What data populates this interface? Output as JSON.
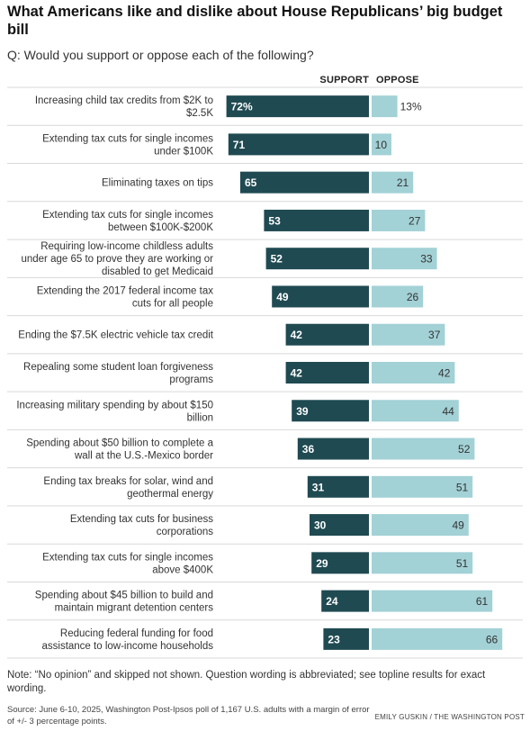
{
  "title": "What Americans like and dislike about House Republicans’ big budget bill",
  "subtitle": "Q: Would you support or oppose each of the following?",
  "note": "Note: “No opinion” and skipped not shown. Question wording is abbreviated; see topline results for exact wording.",
  "source": "Source: June 6-10, 2025, Washington Post-Ipsos poll of 1,167 U.S. adults with a margin of error of +/- 3 percentage points.",
  "credit": "EMILY GUSKIN / THE WASHINGTON POST",
  "colors": {
    "support": "#1f4a52",
    "oppose": "#a2d1d6",
    "divider": "#d9d9d9"
  },
  "chart_data": {
    "type": "bar",
    "orientation": "horizontal-diverging",
    "series": [
      {
        "name": "SUPPORT",
        "values": [
          72,
          71,
          65,
          53,
          52,
          49,
          42,
          42,
          39,
          36,
          31,
          30,
          29,
          24,
          23
        ],
        "labels": [
          "72%",
          "71",
          "65",
          "53",
          "52",
          "49",
          "42",
          "42",
          "39",
          "36",
          "31",
          "30",
          "29",
          "24",
          "23"
        ]
      },
      {
        "name": "OPPOSE",
        "values": [
          13,
          10,
          21,
          27,
          33,
          26,
          37,
          42,
          44,
          52,
          51,
          49,
          51,
          61,
          66
        ],
        "labels": [
          "13%",
          "10",
          "21",
          "27",
          "33",
          "26",
          "37",
          "42",
          "44",
          "52",
          "51",
          "49",
          "51",
          "61",
          "66"
        ]
      }
    ],
    "categories": [
      [
        "Increasing child tax credits from $2K to",
        "$2.5K"
      ],
      [
        "Extending tax cuts for single incomes",
        "under $100K"
      ],
      [
        "Eliminating taxes on tips"
      ],
      [
        "Extending tax cuts for single incomes",
        "between $100K-$200K"
      ],
      [
        "Requiring low-income childless adults",
        "under age 65 to prove they are working or",
        "disabled to get Medicaid"
      ],
      [
        "Extending the 2017 federal income tax",
        "cuts for all people"
      ],
      [
        "Ending the $7.5K electric vehicle tax credit"
      ],
      [
        "Repealing some student loan forgiveness",
        "programs"
      ],
      [
        "Increasing military spending by about $150",
        "billion"
      ],
      [
        "Spending about $50 billion to complete a",
        "wall at the U.S.-Mexico border"
      ],
      [
        "Ending tax breaks for solar, wind and",
        "geothermal energy"
      ],
      [
        "Extending tax cuts for business",
        "corporations"
      ],
      [
        "Extending tax cuts for single incomes",
        "above $400K"
      ],
      [
        "Spending about $45 billion to build and",
        "maintain migrant detention centers"
      ],
      [
        "Reducing federal funding for food",
        "assistance to low-income households"
      ]
    ],
    "legend": "column headers above bars"
  }
}
